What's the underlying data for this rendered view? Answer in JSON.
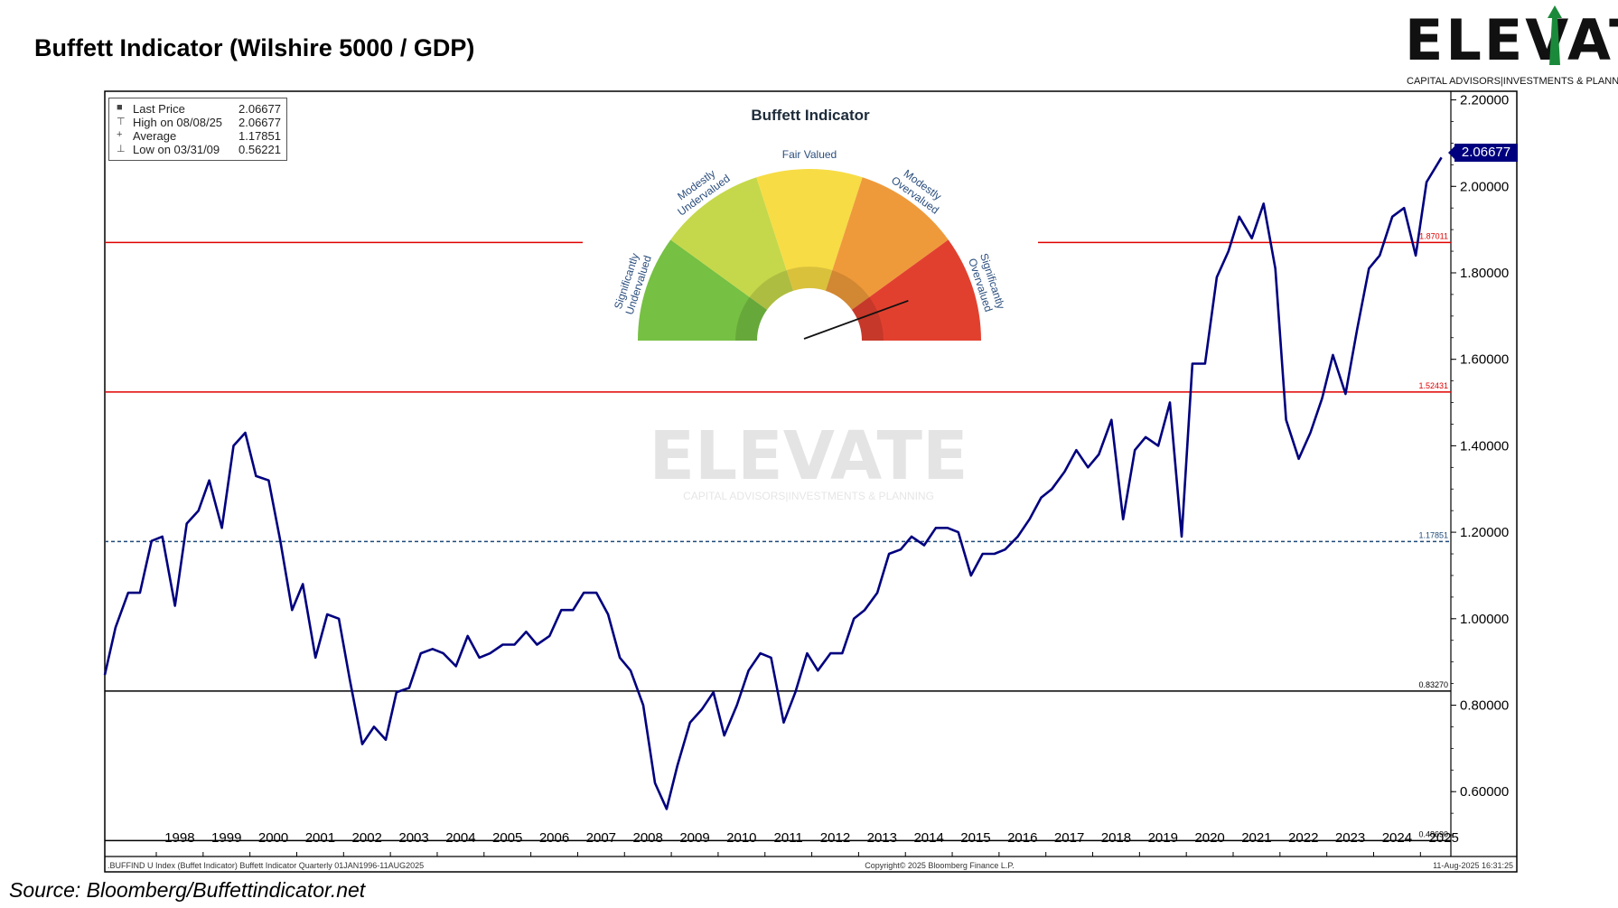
{
  "page": {
    "title": "Buffett Indicator (Wilshire 5000 / GDP)",
    "source": "Source: Bloomberg/Buffettindicator.net"
  },
  "logo": {
    "word": "ELEVATE",
    "tagline": "CAPITAL ADVISORS|INVESTMENTS & PLANNING"
  },
  "watermark": {
    "word": "ELEVATE",
    "tagline": "CAPITAL ADVISORS|INVESTMENTS & PLANNING"
  },
  "legend": {
    "rows": [
      {
        "label": "Last Price",
        "value": "2.06677"
      },
      {
        "label": "High on 08/08/25",
        "value": "2.06677"
      },
      {
        "label": "Average",
        "value": "1.17851"
      },
      {
        "label": "Low on 03/31/09",
        "value": "0.56221"
      }
    ]
  },
  "price_tag": "2.06677",
  "footer": {
    "left": ".BUFFIND U Index (Buffet Indicator) Buffett Indicator  Quarterly 01JAN1996-11AUG2025",
    "center": "Copyright© 2025 Bloomberg Finance L.P.",
    "right": "11-Aug-2025 16:31:25"
  },
  "gauge": {
    "title": "Buffett Indicator",
    "segments": [
      {
        "label": [
          "Significantly",
          "Undervalued"
        ],
        "color": "#76c043"
      },
      {
        "label": [
          "Modestly",
          "Undervalued"
        ],
        "color": "#c5d84b"
      },
      {
        "label": [
          "Fair Valued"
        ],
        "color": "#f7dc45"
      },
      {
        "label": [
          "Modestly",
          "Overvalued"
        ],
        "color": "#ef9a3a"
      },
      {
        "label": [
          "Significantly",
          "Overvalued"
        ],
        "color": "#e2402f"
      }
    ],
    "label_color": "#2b4e7e"
  },
  "chart_data": {
    "type": "line",
    "ylim": [
      0.45,
      2.22
    ],
    "xlim": [
      1996.9,
      2025.65
    ],
    "yticks": [
      "2.20000",
      "2.00000",
      "1.80000",
      "1.60000",
      "1.40000",
      "1.20000",
      "1.00000",
      "0.80000",
      "0.60000"
    ],
    "ytick_values": [
      2.2,
      2.0,
      1.8,
      1.6,
      1.4,
      1.2,
      1.0,
      0.8,
      0.6
    ],
    "xticks": [
      "1998",
      "1999",
      "2000",
      "2001",
      "2002",
      "2003",
      "2004",
      "2005",
      "2006",
      "2007",
      "2008",
      "2009",
      "2010",
      "2011",
      "2012",
      "2013",
      "2014",
      "2015",
      "2016",
      "2017",
      "2018",
      "2019",
      "2020",
      "2021",
      "2022",
      "2023",
      "2024",
      "2025"
    ],
    "hlines": [
      {
        "value": 1.87011,
        "label": "1.87011",
        "color": "#e00000",
        "style": "solid"
      },
      {
        "value": 1.52431,
        "label": "1.52431",
        "color": "#e00000",
        "style": "solid"
      },
      {
        "value": 1.17851,
        "label": "1.17851",
        "color": "#1f4a7a",
        "style": "dashed"
      },
      {
        "value": 0.8327,
        "label": "0.83270",
        "color": "#000000",
        "style": "solid"
      },
      {
        "value": 0.4869,
        "label": "0.48690",
        "color": "#000000",
        "style": "solid"
      }
    ],
    "series": [
      {
        "color": "#00007f",
        "x": [
          1996.9,
          1997.13,
          1997.4,
          1997.65,
          1997.9,
          1998.13,
          1998.4,
          1998.65,
          1998.9,
          1999.13,
          1999.4,
          1999.65,
          1999.9,
          2000.13,
          2000.4,
          2000.65,
          2000.9,
          2001.13,
          2001.4,
          2001.65,
          2001.9,
          2002.13,
          2002.4,
          2002.65,
          2002.9,
          2003.13,
          2003.4,
          2003.65,
          2003.9,
          2004.13,
          2004.4,
          2004.65,
          2004.9,
          2005.13,
          2005.4,
          2005.65,
          2005.9,
          2006.13,
          2006.4,
          2006.65,
          2006.9,
          2007.13,
          2007.4,
          2007.65,
          2007.9,
          2008.13,
          2008.4,
          2008.65,
          2008.9,
          2009.13,
          2009.4,
          2009.65,
          2009.9,
          2010.13,
          2010.4,
          2010.65,
          2010.9,
          2011.13,
          2011.4,
          2011.65,
          2011.9,
          2012.13,
          2012.4,
          2012.65,
          2012.9,
          2013.13,
          2013.4,
          2013.65,
          2013.9,
          2014.13,
          2014.4,
          2014.65,
          2014.9,
          2015.13,
          2015.4,
          2015.65,
          2015.9,
          2016.13,
          2016.4,
          2016.65,
          2016.9,
          2017.13,
          2017.4,
          2017.65,
          2017.9,
          2018.13,
          2018.4,
          2018.65,
          2018.9,
          2019.13,
          2019.4,
          2019.65,
          2019.9,
          2020.13,
          2020.4,
          2020.65,
          2020.9,
          2021.13,
          2021.4,
          2021.65,
          2021.9,
          2022.13,
          2022.4,
          2022.65,
          2022.9,
          2023.13,
          2023.4,
          2023.65,
          2023.9,
          2024.13,
          2024.4,
          2024.65,
          2024.9,
          2025.13,
          2025.45
        ],
        "y": [
          0.87,
          0.98,
          1.06,
          1.06,
          1.18,
          1.19,
          1.03,
          1.22,
          1.25,
          1.32,
          1.21,
          1.4,
          1.43,
          1.33,
          1.32,
          1.18,
          1.02,
          1.08,
          0.91,
          1.01,
          1.0,
          0.86,
          0.71,
          0.75,
          0.72,
          0.83,
          0.84,
          0.92,
          0.93,
          0.92,
          0.89,
          0.96,
          0.91,
          0.92,
          0.94,
          0.94,
          0.97,
          0.94,
          0.96,
          1.02,
          1.02,
          1.06,
          1.06,
          1.01,
          0.91,
          0.88,
          0.8,
          0.62,
          0.56,
          0.66,
          0.76,
          0.79,
          0.83,
          0.73,
          0.8,
          0.88,
          0.92,
          0.91,
          0.76,
          0.83,
          0.92,
          0.88,
          0.92,
          0.92,
          1.0,
          1.02,
          1.06,
          1.15,
          1.16,
          1.19,
          1.17,
          1.21,
          1.21,
          1.2,
          1.1,
          1.15,
          1.15,
          1.16,
          1.19,
          1.23,
          1.28,
          1.3,
          1.34,
          1.39,
          1.35,
          1.38,
          1.46,
          1.23,
          1.39,
          1.42,
          1.4,
          1.5,
          1.19,
          1.59,
          1.59,
          1.79,
          1.85,
          1.93,
          1.88,
          1.96,
          1.81,
          1.46,
          1.37,
          1.43,
          1.51,
          1.61,
          1.52,
          1.67,
          1.81,
          1.84,
          1.93,
          1.95,
          1.84,
          2.01,
          2.06677
        ]
      }
    ]
  }
}
